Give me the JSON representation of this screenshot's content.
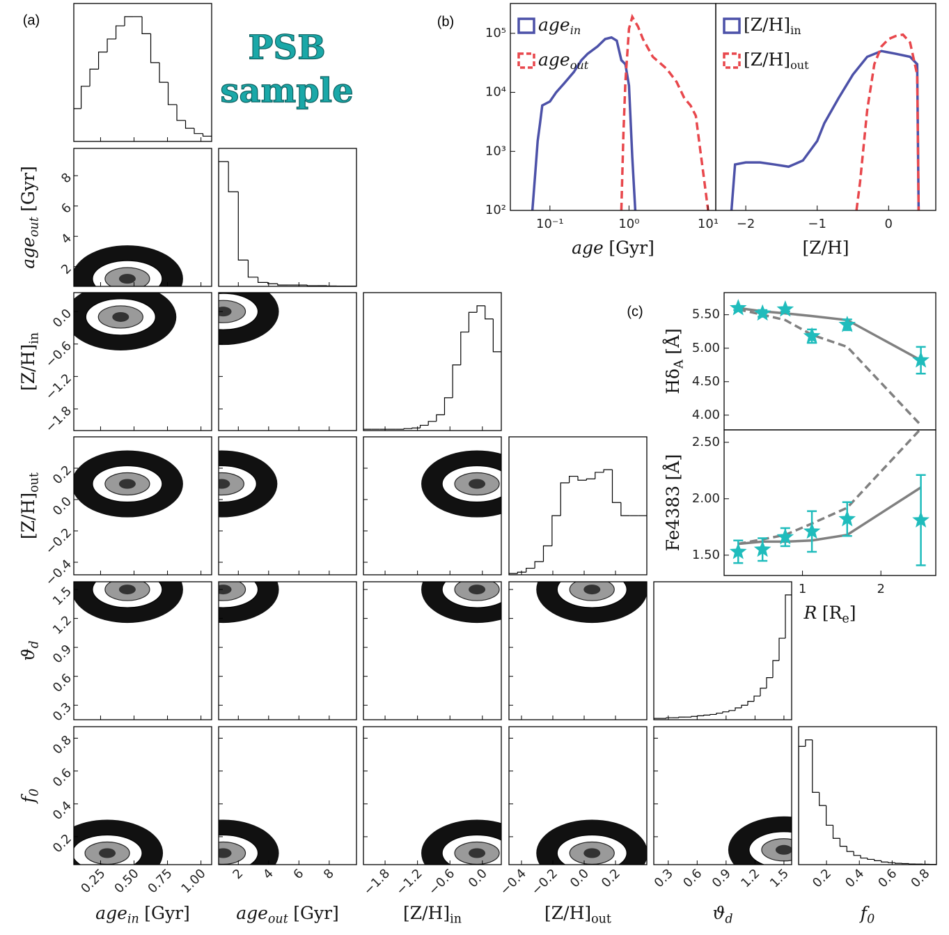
{
  "chart_data": [
    {
      "type": "corner",
      "panel_label": "(a)",
      "title": "PSB",
      "subtitle": "sample",
      "title_color": "#1aa8a8",
      "hist_ylim": [
        0,
        1.05
      ],
      "variables": [
        {
          "label": {
            "text": "age",
            "sub": "in",
            "unit": "[Gyr]",
            "italic": true
          },
          "lim": [
            0.05,
            1.08
          ],
          "ticks": [
            0.25,
            {
              "value": 0.5,
              "label": "0.50"
            },
            0.75,
            {
              "value": 1,
              "label": "1.00"
            }
          ],
          "hist": {
            "bins": [
              0.04,
              0.105,
              0.17,
              0.235,
              0.3,
              0.365,
              0.43,
              0.495,
              0.56,
              0.625,
              0.69,
              0.755,
              0.82,
              0.885,
              0.95,
              1.015,
              1.08
            ],
            "counts": [
              0.25,
              0.42,
              0.55,
              0.68,
              0.78,
              0.88,
              0.95,
              0.95,
              0.82,
              0.6,
              0.45,
              0.28,
              0.16,
              0.1,
              0.06,
              0.04
            ]
          }
        },
        {
          "label": {
            "text": "age",
            "sub": "out",
            "unit": "[Gyr]",
            "italic": true
          },
          "lim": [
            0.7,
            9.8
          ],
          "ticks": [
            2,
            4,
            6,
            8
          ],
          "hist": {
            "bins": [
              0.7,
              1.35,
              2.0,
              2.65,
              3.3,
              3.95,
              4.6,
              5.25,
              5.9,
              6.55,
              7.2,
              7.85,
              8.5,
              9.15,
              9.8
            ],
            "counts": [
              0.95,
              0.72,
              0.2,
              0.07,
              0.03,
              0.02,
              0.01,
              0.01,
              0.01,
              0.005,
              0.005,
              0.003,
              0.002,
              0.002
            ]
          }
        },
        {
          "label": {
            "text": "[Z/H]",
            "sub": "in"
          },
          "lim": [
            -2.2,
            0.35
          ],
          "ticks": [
            {
              "value": -1.8,
              "label": "−1.8"
            },
            {
              "value": -1.2,
              "label": "−1.2"
            },
            {
              "value": -0.6,
              "label": "−0.6"
            },
            {
              "value": 0,
              "label": "0.0"
            }
          ],
          "hist": {
            "bins": [
              -2.2,
              -2.05,
              -1.9,
              -1.75,
              -1.6,
              -1.45,
              -1.3,
              -1.15,
              -1.0,
              -0.85,
              -0.7,
              -0.55,
              -0.4,
              -0.25,
              -0.1,
              0.05,
              0.2,
              0.35
            ],
            "counts": [
              0.01,
              0.01,
              0.01,
              0.01,
              0.01,
              0.015,
              0.02,
              0.04,
              0.07,
              0.12,
              0.25,
              0.5,
              0.75,
              0.9,
              0.95,
              0.85,
              0.6
            ]
          }
        },
        {
          "label": {
            "text": "[Z/H]",
            "sub": "out"
          },
          "lim": [
            -0.48,
            0.4
          ],
          "ticks": [
            {
              "value": -0.4,
              "label": "−0.4"
            },
            {
              "value": -0.2,
              "label": "−0.2"
            },
            {
              "value": 0,
              "label": "0.0"
            },
            0.2
          ],
          "hist": {
            "bins": [
              -0.48,
              -0.425,
              -0.37,
              -0.315,
              -0.26,
              -0.205,
              -0.15,
              -0.095,
              -0.04,
              0.015,
              0.07,
              0.125,
              0.18,
              0.235,
              0.29,
              0.345,
              0.4
            ],
            "counts": [
              0.01,
              0.02,
              0.05,
              0.1,
              0.22,
              0.45,
              0.7,
              0.75,
              0.72,
              0.73,
              0.78,
              0.8,
              0.55,
              0.45,
              0.45,
              0.45
            ]
          }
        },
        {
          "label": {
            "text": "ϑ",
            "sub": "d",
            "italic": true
          },
          "lim": [
            0.15,
            1.58
          ],
          "ticks": [
            0.3,
            0.6,
            0.9,
            1.2,
            1.5
          ],
          "hist": {
            "bins": [
              0.15,
              0.215,
              0.28,
              0.345,
              0.41,
              0.475,
              0.54,
              0.605,
              0.67,
              0.735,
              0.8,
              0.865,
              0.93,
              0.995,
              1.06,
              1.125,
              1.19,
              1.255,
              1.32,
              1.385,
              1.45,
              1.515,
              1.58
            ],
            "counts": [
              0.01,
              0.01,
              0.015,
              0.015,
              0.02,
              0.02,
              0.025,
              0.03,
              0.035,
              0.04,
              0.05,
              0.06,
              0.07,
              0.09,
              0.11,
              0.14,
              0.18,
              0.24,
              0.32,
              0.45,
              0.62,
              0.95
            ]
          }
        },
        {
          "label": {
            "text": "f",
            "sub": "0",
            "italic": true
          },
          "lim": [
            0.03,
            0.87
          ],
          "ticks": [
            0.2,
            0.4,
            0.6,
            0.8
          ],
          "hist": {
            "bins": [
              0.03,
              0.072,
              0.114,
              0.156,
              0.198,
              0.24,
              0.282,
              0.324,
              0.366,
              0.408,
              0.45,
              0.492,
              0.534,
              0.576,
              0.618,
              0.66,
              0.702,
              0.744,
              0.786,
              0.828,
              0.87
            ],
            "counts": [
              0.9,
              0.95,
              0.55,
              0.45,
              0.3,
              0.2,
              0.14,
              0.1,
              0.07,
              0.05,
              0.04,
              0.03,
              0.02,
              0.015,
              0.01,
              0.008,
              0.005,
              0.004,
              0.003,
              0.002
            ]
          }
        }
      ],
      "density_peaks": [
        {
          "x_var": 0,
          "y_var": 1,
          "x": 0.45,
          "y": 1.2
        },
        {
          "x_var": 0,
          "y_var": 2,
          "x": 0.4,
          "y": -0.1
        },
        {
          "x_var": 1,
          "y_var": 2,
          "x": 1.0,
          "y": 0.0
        },
        {
          "x_var": 0,
          "y_var": 3,
          "x": 0.45,
          "y": 0.1
        },
        {
          "x_var": 1,
          "y_var": 3,
          "x": 0.9,
          "y": 0.1
        },
        {
          "x_var": 2,
          "y_var": 3,
          "x": -0.1,
          "y": 0.1
        },
        {
          "x_var": 0,
          "y_var": 4,
          "x": 0.45,
          "y": 1.5
        },
        {
          "x_var": 1,
          "y_var": 4,
          "x": 1.0,
          "y": 1.5
        },
        {
          "x_var": 2,
          "y_var": 4,
          "x": -0.1,
          "y": 1.5
        },
        {
          "x_var": 3,
          "y_var": 4,
          "x": 0.05,
          "y": 1.5
        },
        {
          "x_var": 0,
          "y_var": 5,
          "x": 0.3,
          "y": 0.1
        },
        {
          "x_var": 1,
          "y_var": 5,
          "x": 1.0,
          "y": 0.1
        },
        {
          "x_var": 2,
          "y_var": 5,
          "x": -0.1,
          "y": 0.1
        },
        {
          "x_var": 3,
          "y_var": 5,
          "x": 0.05,
          "y": 0.1
        },
        {
          "x_var": 4,
          "y_var": 5,
          "x": 1.5,
          "y": 0.12
        }
      ]
    },
    {
      "type": "line",
      "panel_label": "(b)",
      "xlabel": {
        "text": "age",
        "unit": "[Gyr]",
        "italic": true
      },
      "xlog": true,
      "ylog": true,
      "xlim": [
        0.0316,
        12.5
      ],
      "ylim": [
        100,
        320000
      ],
      "xticks": [
        {
          "value": 0.1,
          "label": "10⁻¹"
        },
        {
          "value": 1,
          "label": "10⁰"
        },
        {
          "value": 10,
          "label": "10¹"
        }
      ],
      "yticks": [
        {
          "value": 100,
          "label": "10²"
        },
        {
          "value": 1000,
          "label": "10³"
        },
        {
          "value": 10000,
          "label": "10⁴"
        },
        {
          "value": 100000,
          "label": "10⁵"
        }
      ],
      "legend": "upper left",
      "series": [
        {
          "name": "age",
          "sub": "in",
          "italic": true,
          "color": "#4c51a8",
          "linestyle": "solid",
          "x": [
            0.06,
            0.065,
            0.07,
            0.075,
            0.08,
            0.1,
            0.12,
            0.15,
            0.2,
            0.25,
            0.3,
            0.4,
            0.5,
            0.6,
            0.7,
            0.8,
            0.9,
            1.0,
            1.1,
            1.2
          ],
          "values": [
            100,
            400,
            1500,
            3000,
            6000,
            7000,
            10000,
            14000,
            22000,
            35000,
            45000,
            60000,
            80000,
            85000,
            75000,
            35000,
            30000,
            13000,
            800,
            100
          ]
        },
        {
          "name": "age",
          "sub": "out",
          "italic": true,
          "color": "#e8474c",
          "linestyle": "dashed",
          "x": [
            0.8,
            0.85,
            0.9,
            1.0,
            1.1,
            1.3,
            1.5,
            2.0,
            3,
            4,
            5,
            6,
            7,
            8,
            9,
            10
          ],
          "values": [
            100,
            2000,
            15000,
            120000,
            190000,
            130000,
            80000,
            40000,
            25000,
            15000,
            8000,
            6000,
            4000,
            1000,
            300,
            100
          ]
        }
      ]
    },
    {
      "type": "line",
      "xlabel": {
        "text": "[Z/H]"
      },
      "xlog": false,
      "ylog": true,
      "xlim": [
        -2.42,
        0.66
      ],
      "ylim": [
        100,
        320000
      ],
      "xticks": [
        {
          "value": -2,
          "label": "−2"
        },
        {
          "value": -1,
          "label": "−1"
        },
        0
      ],
      "legend": "upper left",
      "series": [
        {
          "name": "[Z/H]",
          "sub": "in",
          "color": "#4c51a8",
          "linestyle": "solid",
          "x": [
            -2.2,
            -2.15,
            -2.0,
            -1.8,
            -1.6,
            -1.4,
            -1.2,
            -1.0,
            -0.9,
            -0.7,
            -0.5,
            -0.3,
            -0.1,
            0.1,
            0.3,
            0.4,
            0.42
          ],
          "values": [
            100,
            600,
            650,
            650,
            600,
            550,
            700,
            1500,
            3000,
            8000,
            20000,
            40000,
            50000,
            45000,
            40000,
            30000,
            100
          ]
        },
        {
          "name": "[Z/H]",
          "sub": "out",
          "color": "#e8474c",
          "linestyle": "dashed",
          "x": [
            -0.45,
            -0.4,
            -0.3,
            -0.2,
            -0.1,
            0.0,
            0.1,
            0.2,
            0.3,
            0.4,
            0.42
          ],
          "values": [
            100,
            300,
            5000,
            30000,
            60000,
            80000,
            90000,
            95000,
            70000,
            20000,
            100
          ]
        }
      ]
    },
    {
      "type": "line",
      "panel_label": "(c)",
      "ylabel": {
        "text": "Hδ",
        "sub": "A",
        "unit": "[Å]"
      },
      "xlim": [
        0,
        2.7
      ],
      "ylim": [
        3.78,
        5.83
      ],
      "yticks": [
        {
          "value": 5.5,
          "label": "5.50"
        },
        {
          "value": 5,
          "label": "5.00"
        },
        {
          "value": 4.5,
          "label": "4.50"
        },
        {
          "value": 4,
          "label": "4.00"
        }
      ],
      "x": [
        0.18,
        0.49,
        0.78,
        1.12,
        1.57,
        2.51
      ],
      "series": [
        {
          "color": "#808080",
          "linestyle": "solid",
          "values": [
            5.6,
            5.55,
            5.52,
            5.48,
            5.42,
            4.82
          ]
        },
        {
          "color": "#808080",
          "linestyle": "dashed",
          "values": [
            5.58,
            5.5,
            5.42,
            5.2,
            5.02,
            3.85
          ]
        },
        {
          "color": "#1fbcbc",
          "marker": "star",
          "values": [
            5.6,
            5.52,
            5.58,
            5.18,
            5.35,
            4.82
          ],
          "errors": [
            0.03,
            0.05,
            0.03,
            0.1,
            0.08,
            0.2
          ]
        }
      ]
    },
    {
      "type": "line",
      "ylabel": {
        "text": "Fe4383",
        "unit": "[Å]"
      },
      "xlabel": {
        "text": "R",
        "italic": true,
        "unit": "[R",
        "unit_sub": "e",
        "unit_end": "]"
      },
      "xlim": [
        0,
        2.7
      ],
      "ylim": [
        1.32,
        2.61
      ],
      "xticks": [
        1,
        2
      ],
      "yticks": [
        {
          "value": 1.5,
          "label": "1.50"
        },
        {
          "value": 2,
          "label": "2.00"
        },
        {
          "value": 2.5,
          "label": "2.50"
        }
      ],
      "x": [
        0.18,
        0.49,
        0.78,
        1.12,
        1.57,
        2.51
      ],
      "series": [
        {
          "color": "#808080",
          "linestyle": "solid",
          "values": [
            1.6,
            1.62,
            1.62,
            1.63,
            1.68,
            2.1
          ]
        },
        {
          "color": "#808080",
          "linestyle": "dashed",
          "values": [
            1.6,
            1.64,
            1.68,
            1.78,
            1.92,
            2.62
          ]
        },
        {
          "color": "#1fbcbc",
          "marker": "star",
          "values": [
            1.53,
            1.55,
            1.66,
            1.71,
            1.82,
            1.81
          ],
          "errors": [
            0.1,
            0.1,
            0.08,
            0.18,
            0.15,
            0.4
          ]
        }
      ]
    }
  ]
}
